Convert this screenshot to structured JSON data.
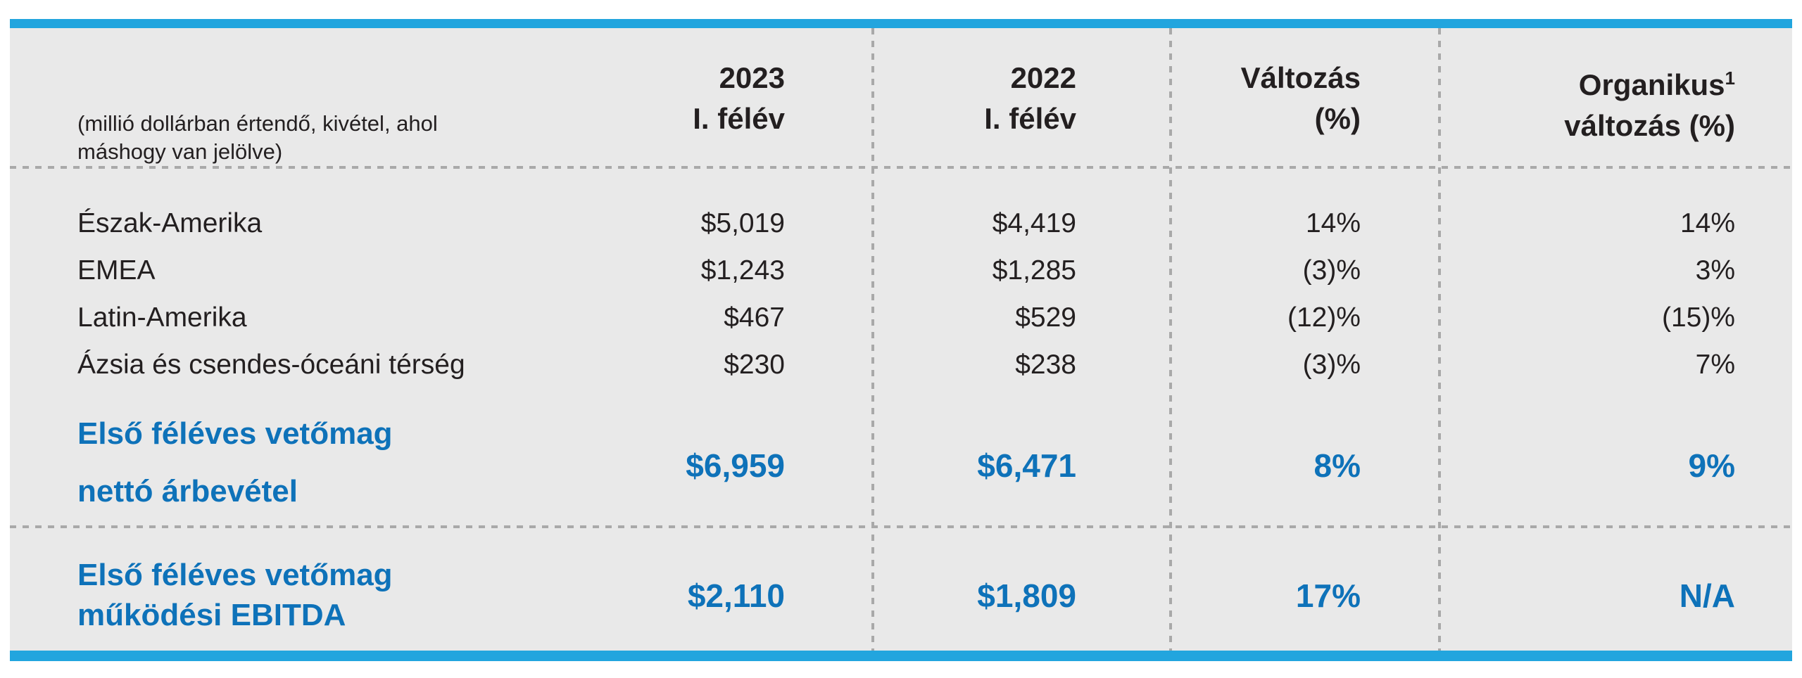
{
  "table": {
    "unit_note": {
      "line1": "(millió dollárban értendő, kivétel, ahol",
      "line2": "máshogy van jelölve)"
    },
    "headers": {
      "col_2023": {
        "line1": "2023",
        "line2": "I. félév"
      },
      "col_2022": {
        "line1": "2022",
        "line2": "I. félév"
      },
      "col_change": {
        "line1": "Változás",
        "line2": "(%)"
      },
      "col_organic": {
        "line1": "Organikus",
        "superscript": "1",
        "line2": "változás (%)"
      }
    },
    "rows": [
      {
        "label": "Észak-Amerika",
        "y2023": "$5,019",
        "y2022": "$4,419",
        "change": "14%",
        "organic": "14%"
      },
      {
        "label": "EMEA",
        "y2023": "$1,243",
        "y2022": "$1,285",
        "change": "(3)%",
        "organic": "3%"
      },
      {
        "label": "Latin-Amerika",
        "y2023": "$467",
        "y2022": "$529",
        "change": "(12)%",
        "organic": "(15)%"
      },
      {
        "label": "Ázsia és csendes-óceáni térség",
        "y2023": "$230",
        "y2022": "$238",
        "change": "(3)%",
        "organic": "7%"
      }
    ],
    "summary": [
      {
        "label_line1": "Első féléves vetőmag",
        "label_line2": "nettó árbevétel",
        "y2023": "$6,959",
        "y2022": "$6,471",
        "change": "8%",
        "organic": "9%"
      },
      {
        "label_line1": "Első féléves vetőmag",
        "label_line2": "működési EBITDA",
        "y2023": "$2,110",
        "y2022": "$1,809",
        "change": "17%",
        "organic": "N/A"
      }
    ],
    "colors": {
      "accent_bar": "#22a5de",
      "summary_text": "#0e72b9",
      "body_text": "#231f20",
      "panel_background": "#e9e9e9",
      "dotted_line": "#a9a9a9"
    }
  }
}
